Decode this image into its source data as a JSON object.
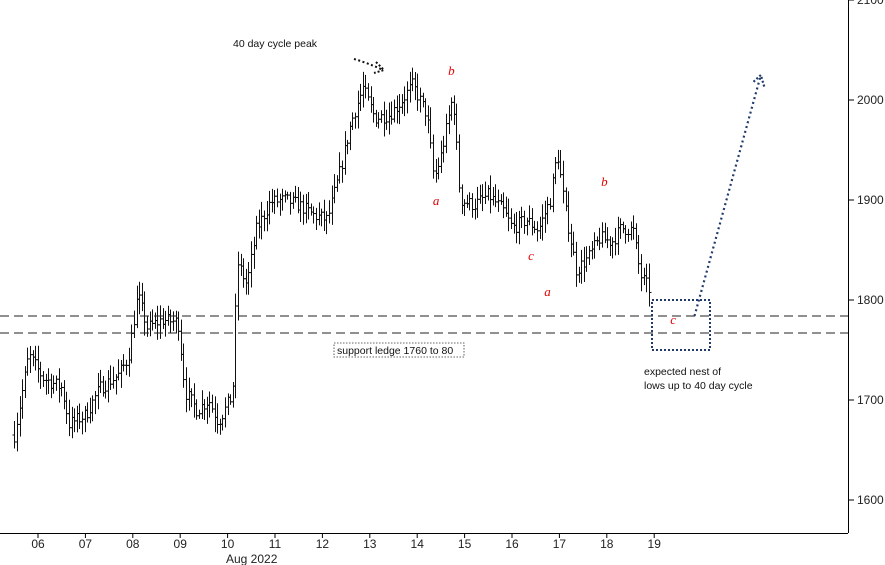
{
  "chart_data": {
    "type": "ohlc",
    "title": "",
    "xlabel": "",
    "ylabel": "",
    "x_ticks": [
      "06",
      "07",
      "08",
      "09",
      "10",
      "11",
      "12",
      "13",
      "14",
      "15",
      "16",
      "17",
      "18",
      "19"
    ],
    "x_month_label": "Aug 2022",
    "y_ticks": [
      "1600",
      "1700",
      "1800",
      "1900",
      "2000",
      "2100"
    ],
    "ylim": [
      1530,
      2100
    ],
    "y_axis_side": "right",
    "grid": false,
    "series": [
      {
        "bar_style": "ohlc",
        "approx_price_path": [
          {
            "day": 5.5,
            "price": 1665
          },
          {
            "day": 5.8,
            "price": 1745
          },
          {
            "day": 6.1,
            "price": 1722
          },
          {
            "day": 6.5,
            "price": 1712
          },
          {
            "day": 6.65,
            "price": 1676
          },
          {
            "day": 7.0,
            "price": 1685
          },
          {
            "day": 7.3,
            "price": 1712
          },
          {
            "day": 7.7,
            "price": 1725
          },
          {
            "day": 7.9,
            "price": 1742
          },
          {
            "day": 8.1,
            "price": 1805
          },
          {
            "day": 8.3,
            "price": 1772
          },
          {
            "day": 8.6,
            "price": 1780
          },
          {
            "day": 8.95,
            "price": 1778
          },
          {
            "day": 9.1,
            "price": 1708
          },
          {
            "day": 9.35,
            "price": 1690
          },
          {
            "day": 9.6,
            "price": 1700
          },
          {
            "day": 9.8,
            "price": 1678
          },
          {
            "day": 10.1,
            "price": 1705
          },
          {
            "day": 10.2,
            "price": 1838
          },
          {
            "day": 10.4,
            "price": 1815
          },
          {
            "day": 10.6,
            "price": 1870
          },
          {
            "day": 10.9,
            "price": 1898
          },
          {
            "day": 11.2,
            "price": 1900
          },
          {
            "day": 11.5,
            "price": 1895
          },
          {
            "day": 11.8,
            "price": 1885
          },
          {
            "day": 12.1,
            "price": 1880
          },
          {
            "day": 12.4,
            "price": 1935
          },
          {
            "day": 12.6,
            "price": 1978
          },
          {
            "day": 12.85,
            "price": 2012
          },
          {
            "day": 13.1,
            "price": 1982
          },
          {
            "day": 13.4,
            "price": 1985
          },
          {
            "day": 13.6,
            "price": 1995
          },
          {
            "day": 13.9,
            "price": 2015
          },
          {
            "day": 14.2,
            "price": 1985
          },
          {
            "day": 14.35,
            "price": 1920
          },
          {
            "day": 14.5,
            "price": 1945
          },
          {
            "day": 14.75,
            "price": 2005
          },
          {
            "day": 14.9,
            "price": 1900
          },
          {
            "day": 15.2,
            "price": 1895
          },
          {
            "day": 15.5,
            "price": 1905
          },
          {
            "day": 15.8,
            "price": 1890
          },
          {
            "day": 16.0,
            "price": 1872
          },
          {
            "day": 16.3,
            "price": 1880
          },
          {
            "day": 16.55,
            "price": 1870
          },
          {
            "day": 16.8,
            "price": 1900
          },
          {
            "day": 16.95,
            "price": 1948
          },
          {
            "day": 17.1,
            "price": 1895
          },
          {
            "day": 17.35,
            "price": 1830
          },
          {
            "day": 17.6,
            "price": 1842
          },
          {
            "day": 17.85,
            "price": 1862
          },
          {
            "day": 18.1,
            "price": 1858
          },
          {
            "day": 18.3,
            "price": 1872
          },
          {
            "day": 18.55,
            "price": 1870
          },
          {
            "day": 18.7,
            "price": 1825
          },
          {
            "day": 18.9,
            "price": 1810
          }
        ]
      }
    ],
    "support_lines": [
      1784,
      1767
    ],
    "annotations": {
      "cycle_peak": "40 day cycle peak",
      "support_ledge": "support ledge 1760 to 80",
      "expected_nest_line1": "expected nest of",
      "expected_nest_line2": "lows up to 40 day cycle"
    },
    "wave_labels": [
      {
        "text": "b",
        "day": 14.72,
        "price": 2025
      },
      {
        "text": "a",
        "day": 14.4,
        "price": 1895
      },
      {
        "text": "c",
        "day": 16.4,
        "price": 1840
      },
      {
        "text": "a",
        "day": 16.75,
        "price": 1804
      },
      {
        "text": "b",
        "day": 17.95,
        "price": 1914
      },
      {
        "text": "c",
        "day": 19.4,
        "price": 1776
      }
    ],
    "projection": {
      "from_day": 19.85,
      "from_price": 1784,
      "to_day": 21.25,
      "to_price": 2025
    },
    "expected_nest_box": {
      "day_from": 19.0,
      "day_to": 20.2,
      "price_from": 1752,
      "price_to": 1800
    },
    "colors": {
      "bars": "#111111",
      "waves": "#e00000",
      "projection": "#1f3a6b",
      "box": "#1f3a6b"
    }
  }
}
